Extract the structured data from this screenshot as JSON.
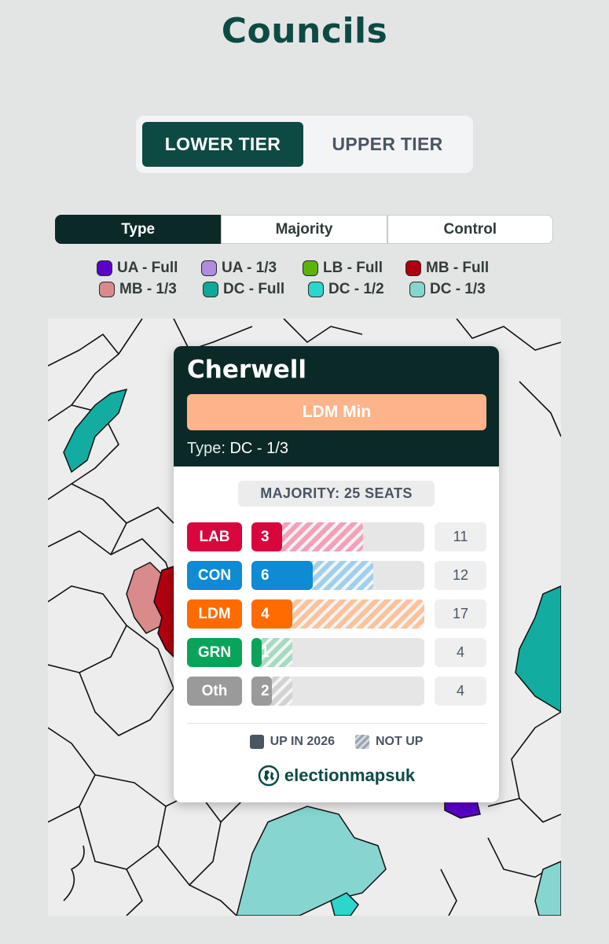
{
  "page": {
    "title": "Councils"
  },
  "tier_toggle": {
    "lower": "LOWER TIER",
    "upper": "UPPER TIER",
    "active": "lower"
  },
  "tabs": [
    {
      "label": "Type",
      "active": true
    },
    {
      "label": "Majority",
      "active": false
    },
    {
      "label": "Control",
      "active": false
    }
  ],
  "legend": [
    {
      "label": "UA - Full",
      "color": "#5a00c8"
    },
    {
      "label": "UA - 1/3",
      "color": "#b08be0"
    },
    {
      "label": "LB - Full",
      "color": "#5db30b"
    },
    {
      "label": "MB - Full",
      "color": "#b0000f"
    },
    {
      "label": "MB - 1/3",
      "color": "#d98a8a"
    },
    {
      "label": "DC - Full",
      "color": "#10a898"
    },
    {
      "label": "DC - 1/2",
      "color": "#2dd6cc"
    },
    {
      "label": "DC - 1/3",
      "color": "#86d5d0"
    }
  ],
  "popup": {
    "council": "Cherwell",
    "control": "LDM Min",
    "control_color": "#fdb48a",
    "type_label": "Type:",
    "type_value": "DC - 1/3",
    "majority": "MAJORITY: 25 SEATS",
    "parties": [
      {
        "name": "LAB",
        "up": 3,
        "notup": 8,
        "total": "11",
        "color": "#d9063e",
        "hatch": "#f5a0b8"
      },
      {
        "name": "CON",
        "up": 6,
        "notup": 6,
        "total": "12",
        "color": "#0e8bd2",
        "hatch": "#9fd0ee"
      },
      {
        "name": "LDM",
        "up": 4,
        "notup": 13,
        "total": "17",
        "color": "#ff6b00",
        "hatch": "#fdc29a"
      },
      {
        "name": "GRN",
        "up": 1,
        "notup": 3,
        "total": "4",
        "color": "#0aa35a",
        "hatch": "#a3dcc0"
      },
      {
        "name": "Oth",
        "up": 2,
        "notup": 2,
        "total": "4",
        "color": "#9a9a9a",
        "hatch": "#d2d2d2"
      }
    ],
    "key_up": "UP IN 2026",
    "key_notup": "NOT UP",
    "brand": "electionmapsuk"
  }
}
